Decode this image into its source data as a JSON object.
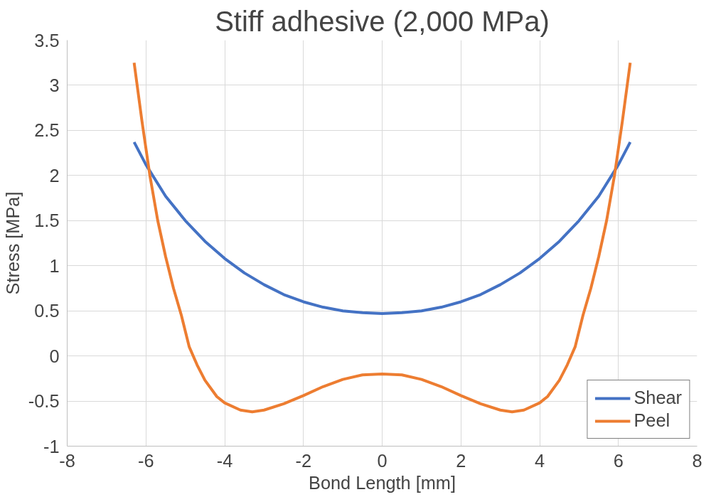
{
  "chart_data": {
    "type": "line",
    "title": "Stiff adhesive (2,000 MPa)",
    "xlabel": "Bond Length [mm]",
    "ylabel": "Stress [MPa]",
    "xlim": [
      -8,
      8
    ],
    "xticks": [
      -8,
      -6,
      -4,
      -2,
      0,
      2,
      4,
      6,
      8
    ],
    "ylim": [
      -1,
      3.5
    ],
    "yticks": [
      -1,
      -0.5,
      0,
      0.5,
      1,
      1.5,
      2,
      2.5,
      3,
      3.5
    ],
    "grid": true,
    "legend": "bottom right",
    "marker": "none",
    "line_style": "solid",
    "series": [
      {
        "name": "Shear",
        "color": "#4472c4",
        "x": [
          -6.3,
          -6,
          -5.5,
          -5,
          -4.5,
          -4,
          -3.5,
          -3,
          -2.5,
          -2,
          -1.5,
          -1,
          -0.5,
          0,
          0.5,
          1,
          1.5,
          2,
          2.5,
          3,
          3.5,
          4,
          4.5,
          5,
          5.5,
          6,
          6.3
        ],
        "values": [
          2.37,
          2.12,
          1.77,
          1.5,
          1.27,
          1.08,
          0.92,
          0.79,
          0.68,
          0.6,
          0.54,
          0.5,
          0.48,
          0.47,
          0.48,
          0.5,
          0.54,
          0.6,
          0.68,
          0.79,
          0.92,
          1.08,
          1.27,
          1.5,
          1.77,
          2.12,
          2.37
        ]
      },
      {
        "name": "Peel",
        "color": "#ed7d31",
        "x": [
          -6.3,
          -6.1,
          -5.9,
          -5.7,
          -5.5,
          -5.3,
          -5.1,
          -4.9,
          -4.7,
          -4.5,
          -4.2,
          -4,
          -3.6,
          -3.3,
          -3,
          -2.5,
          -2,
          -1.5,
          -1,
          -0.5,
          0,
          0.5,
          1,
          1.5,
          2,
          2.5,
          3,
          3.3,
          3.6,
          4,
          4.2,
          4.5,
          4.7,
          4.9,
          5.1,
          5.3,
          5.5,
          5.7,
          5.9,
          6.1,
          6.3
        ],
        "values": [
          3.25,
          2.6,
          2.0,
          1.5,
          1.1,
          0.75,
          0.45,
          0.1,
          -0.1,
          -0.27,
          -0.45,
          -0.52,
          -0.6,
          -0.62,
          -0.6,
          -0.53,
          -0.44,
          -0.34,
          -0.26,
          -0.21,
          -0.2,
          -0.21,
          -0.26,
          -0.34,
          -0.44,
          -0.53,
          -0.6,
          -0.62,
          -0.6,
          -0.52,
          -0.45,
          -0.27,
          -0.1,
          0.1,
          0.45,
          0.75,
          1.1,
          1.5,
          2.0,
          2.6,
          3.25
        ]
      }
    ]
  }
}
